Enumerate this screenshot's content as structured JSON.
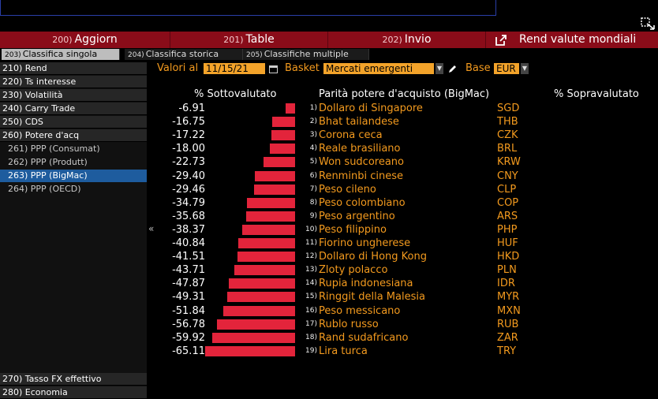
{
  "toolbar": {
    "aggiorn": {
      "num": "200)",
      "label": "Aggiorn"
    },
    "table": {
      "num": "201)",
      "label": "Table"
    },
    "invio": {
      "num": "202)",
      "label": "Invio"
    },
    "title": "Rend valute mondiali"
  },
  "tabs": [
    {
      "num": "203)",
      "label": "Classifica singola"
    },
    {
      "num": "204)",
      "label": "Classifica storica"
    },
    {
      "num": "205)",
      "label": "Classifiche multiple"
    }
  ],
  "sidebar": {
    "items": [
      {
        "label": "210) Rend"
      },
      {
        "label": "220) Ts interesse"
      },
      {
        "label": "230) Volatilità"
      },
      {
        "label": "240) Carry Trade"
      },
      {
        "label": "250) CDS"
      },
      {
        "label": "260) Potere d'acq"
      },
      {
        "label": "261) PPP (Consumat)"
      },
      {
        "label": "262) PPP (Produtt)"
      },
      {
        "label": "263) PPP (BigMac)"
      },
      {
        "label": "264) PPP (OECD)"
      }
    ],
    "bottom": [
      {
        "label": "270) Tasso FX effettivo"
      },
      {
        "label": "280) Economia"
      }
    ]
  },
  "filters": {
    "valori_label": "Valori al",
    "date": "11/15/21",
    "basket_label": "Basket",
    "basket": "Mercati emergenti",
    "base_label": "Base",
    "base": "EUR"
  },
  "headers": {
    "under": "% Sottovalutato",
    "mid": "Parità potere d'acquisto (BigMac)",
    "over": "% Sopravalutato"
  },
  "chart_data": {
    "type": "bar",
    "orientation": "horizontal",
    "axis_direction": "negative-left",
    "max_abs": 65.11,
    "rows": [
      {
        "idx": "1)",
        "value": "-6.91",
        "name": "Dollaro di Singapore",
        "code": "SGD"
      },
      {
        "idx": "2)",
        "value": "-16.75",
        "name": "Bhat tailandese",
        "code": "THB"
      },
      {
        "idx": "3)",
        "value": "-17.22",
        "name": "Corona ceca",
        "code": "CZK"
      },
      {
        "idx": "4)",
        "value": "-18.00",
        "name": "Reale brasiliano",
        "code": "BRL"
      },
      {
        "idx": "5)",
        "value": "-22.73",
        "name": "Won sudcoreano",
        "code": "KRW"
      },
      {
        "idx": "6)",
        "value": "-29.40",
        "name": "Renminbi cinese",
        "code": "CNY"
      },
      {
        "idx": "7)",
        "value": "-29.46",
        "name": "Peso cileno",
        "code": "CLP"
      },
      {
        "idx": "8)",
        "value": "-34.79",
        "name": "Peso colombiano",
        "code": "COP"
      },
      {
        "idx": "9)",
        "value": "-35.68",
        "name": "Peso argentino",
        "code": "ARS"
      },
      {
        "idx": "10)",
        "value": "-38.37",
        "name": "Peso filippino",
        "code": "PHP"
      },
      {
        "idx": "11)",
        "value": "-40.84",
        "name": "Fiorino ungherese",
        "code": "HUF"
      },
      {
        "idx": "12)",
        "value": "-41.51",
        "name": "Dollaro di Hong Kong",
        "code": "HKD"
      },
      {
        "idx": "13)",
        "value": "-43.71",
        "name": "Zloty polacco",
        "code": "PLN"
      },
      {
        "idx": "14)",
        "value": "-47.87",
        "name": "Rupia indonesiana",
        "code": "IDR"
      },
      {
        "idx": "15)",
        "value": "-49.31",
        "name": "Ringgit della Malesia",
        "code": "MYR"
      },
      {
        "idx": "16)",
        "value": "-51.84",
        "name": "Peso messicano",
        "code": "MXN"
      },
      {
        "idx": "17)",
        "value": "-56.78",
        "name": "Rublo russo",
        "code": "RUB"
      },
      {
        "idx": "18)",
        "value": "-59.92",
        "name": "Rand sudafricano",
        "code": "ZAR"
      },
      {
        "idx": "19)",
        "value": "-65.11",
        "name": "Lira turca",
        "code": "TRY"
      }
    ]
  }
}
